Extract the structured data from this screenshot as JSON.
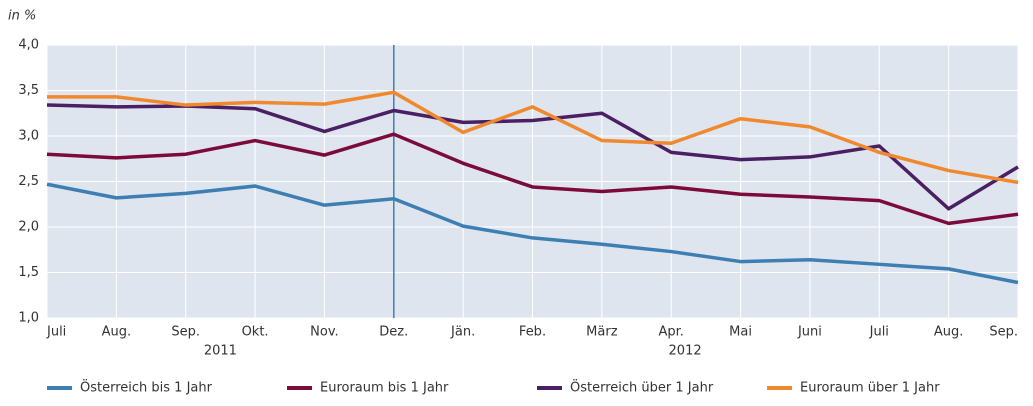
{
  "chart_data": {
    "type": "line",
    "y_label": "in %",
    "categories": [
      "Juli",
      "Aug.",
      "Sep.",
      "Okt.",
      "Nov.",
      "Dez.",
      "Jän.",
      "Feb.",
      "März",
      "Apr.",
      "Mai",
      "Juni",
      "Juli",
      "Aug.",
      "Sep."
    ],
    "x_groups": [
      "2011",
      "2012"
    ],
    "series": [
      {
        "name": "Österreich bis 1 Jahr",
        "color": "#3d7fb3",
        "values": [
          2.47,
          2.32,
          2.37,
          2.45,
          2.24,
          2.31,
          2.01,
          1.88,
          1.81,
          1.73,
          1.62,
          1.64,
          1.59,
          1.54,
          1.39
        ]
      },
      {
        "name": "Euroraum bis 1 Jahr",
        "color": "#7b0b3c",
        "values": [
          2.8,
          2.76,
          2.8,
          2.95,
          2.79,
          3.02,
          2.7,
          2.44,
          2.39,
          2.44,
          2.36,
          2.33,
          2.29,
          2.04,
          2.14
        ]
      },
      {
        "name": "Österreich über 1 Jahr",
        "color": "#4b1f63",
        "values": [
          3.34,
          3.32,
          3.33,
          3.3,
          3.05,
          3.28,
          3.15,
          3.17,
          3.25,
          2.82,
          2.74,
          2.77,
          2.89,
          2.2,
          2.66
        ]
      },
      {
        "name": "Euroraum über 1 Jahr",
        "color": "#f0892d",
        "values": [
          3.43,
          3.43,
          3.34,
          3.37,
          3.35,
          3.48,
          3.04,
          3.32,
          2.95,
          2.92,
          3.19,
          3.1,
          2.82,
          2.62,
          2.49
        ]
      }
    ],
    "ylim": [
      1,
      4
    ],
    "yticks": [
      {
        "value": 1,
        "label": "1,0"
      },
      {
        "value": 1.5,
        "label": "1,5"
      },
      {
        "value": 2,
        "label": "2,0"
      },
      {
        "value": 2.5,
        "label": "2,5"
      },
      {
        "value": 3,
        "label": "3,0"
      },
      {
        "value": 3.5,
        "label": "3,5"
      },
      {
        "value": 4,
        "label": "4,0"
      }
    ],
    "grid": true
  }
}
